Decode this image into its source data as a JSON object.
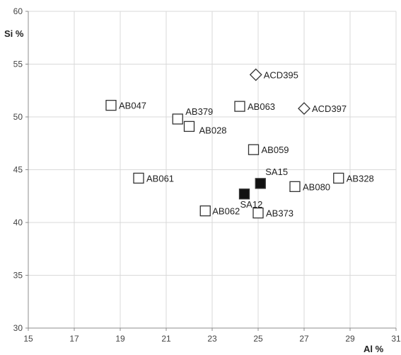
{
  "chart_data": {
    "type": "scatter",
    "xlabel": "Al %",
    "ylabel": "Si %",
    "xlim": [
      15,
      31
    ],
    "ylim": [
      30,
      60
    ],
    "x_ticks": [
      15,
      17,
      19,
      21,
      23,
      25,
      27,
      29,
      31
    ],
    "y_ticks": [
      30,
      35,
      40,
      45,
      50,
      55,
      60
    ],
    "grid": true,
    "points": [
      {
        "label": "AB047",
        "x": 18.6,
        "y": 51.1,
        "marker": "square-open"
      },
      {
        "label": "AB379",
        "x": 21.5,
        "y": 49.8,
        "marker": "square-open"
      },
      {
        "label": "AB028",
        "x": 22.0,
        "y": 49.1,
        "marker": "square-open"
      },
      {
        "label": "AB063",
        "x": 24.2,
        "y": 51.0,
        "marker": "square-open"
      },
      {
        "label": "AB059",
        "x": 24.8,
        "y": 46.9,
        "marker": "square-open"
      },
      {
        "label": "AB061",
        "x": 19.8,
        "y": 44.2,
        "marker": "square-open"
      },
      {
        "label": "AB062",
        "x": 22.7,
        "y": 41.1,
        "marker": "square-open"
      },
      {
        "label": "AB373",
        "x": 25.0,
        "y": 40.9,
        "marker": "square-open"
      },
      {
        "label": "AB080",
        "x": 26.6,
        "y": 43.4,
        "marker": "square-open"
      },
      {
        "label": "AB328",
        "x": 28.5,
        "y": 44.2,
        "marker": "square-open"
      },
      {
        "label": "SA15",
        "x": 25.1,
        "y": 43.7,
        "marker": "square-filled"
      },
      {
        "label": "SA12",
        "x": 24.4,
        "y": 42.7,
        "marker": "square-filled"
      },
      {
        "label": "ACD395",
        "x": 24.9,
        "y": 54.0,
        "marker": "diamond-open"
      },
      {
        "label": "ACD397",
        "x": 27.0,
        "y": 50.8,
        "marker": "diamond-open"
      }
    ]
  }
}
